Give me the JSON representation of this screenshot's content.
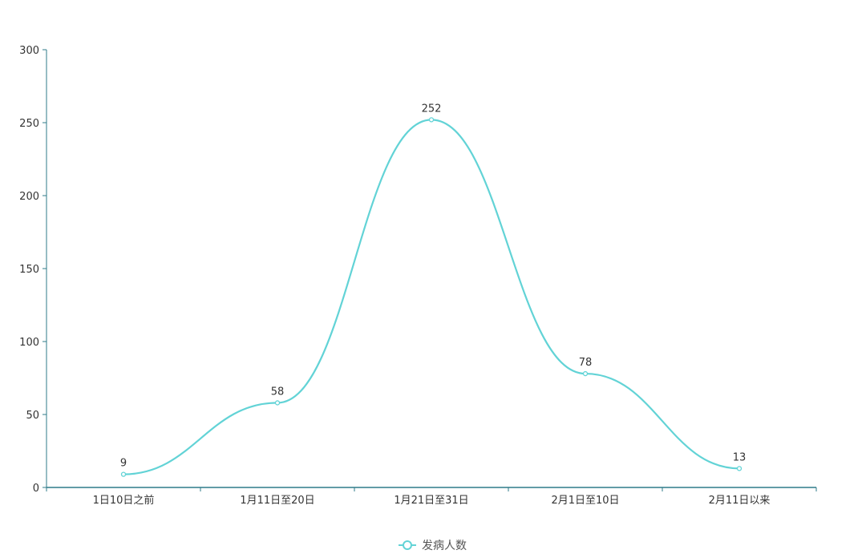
{
  "chart_data": {
    "type": "line",
    "smooth": true,
    "categories": [
      "1日10日之前",
      "1月11日至20日",
      "1月21日至31日",
      "2月1日至10日",
      "2月11日以来"
    ],
    "series": [
      {
        "name": "发病人数",
        "values": [
          9,
          58,
          252,
          78,
          13
        ],
        "color": "#62d3d6"
      }
    ],
    "ylim": [
      0,
      300
    ],
    "yticks": [
      0,
      50,
      100,
      150,
      200,
      250,
      300
    ],
    "grid": false,
    "legend": "bottom-center",
    "axis_color": "#2f7b8a",
    "data_labels": true
  }
}
